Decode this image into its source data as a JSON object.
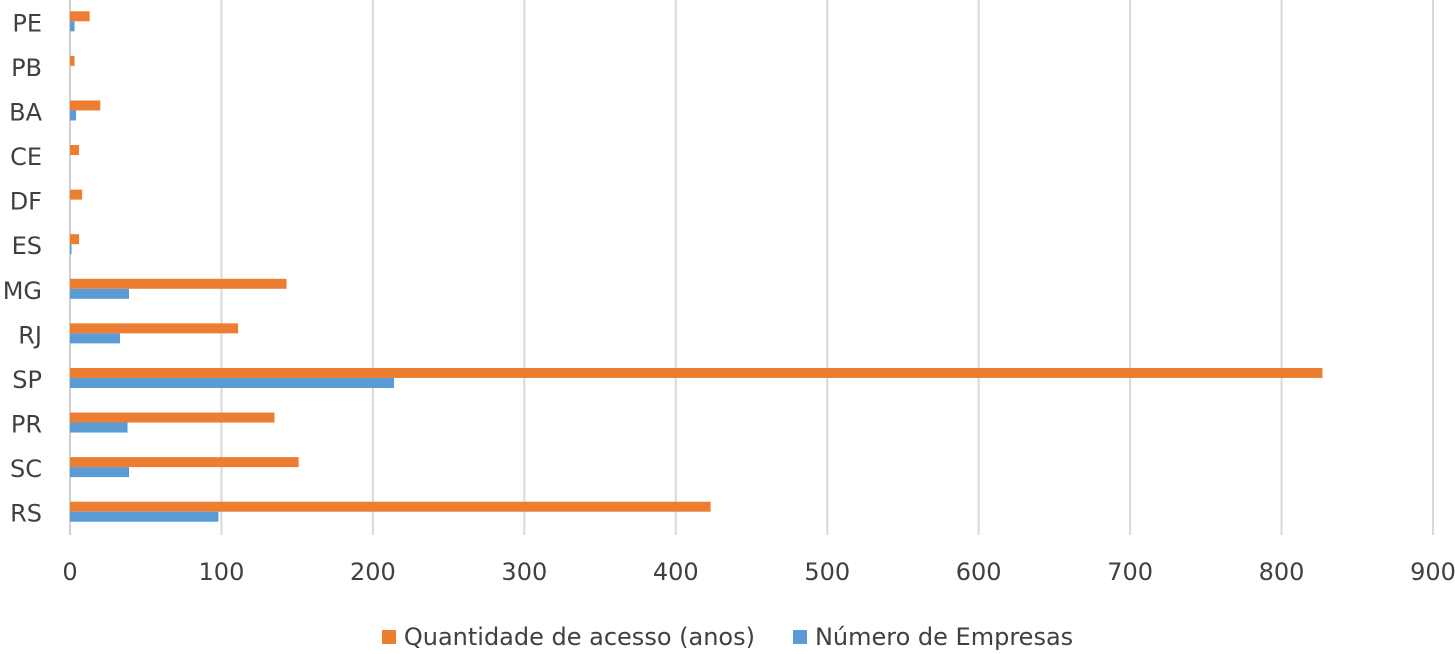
{
  "chart_data": {
    "type": "bar",
    "orientation": "horizontal",
    "categories": [
      "PE",
      "PB",
      "BA",
      "CE",
      "DF",
      "ES",
      "MG",
      "RJ",
      "SP",
      "PR",
      "SC",
      "RS"
    ],
    "series": [
      {
        "name": "Quantidade de acesso (anos)",
        "color": "#ED7D31",
        "values": [
          13,
          3,
          20,
          6,
          8,
          6,
          143,
          111,
          827,
          135,
          151,
          423
        ]
      },
      {
        "name": "Número de Empresas",
        "color": "#5B9BD5",
        "values": [
          3,
          0,
          4,
          0,
          0,
          1,
          39,
          33,
          214,
          38,
          39,
          98
        ]
      }
    ],
    "xlim": [
      0,
      900
    ],
    "xticks": [
      "0",
      "100",
      "200",
      "300",
      "400",
      "500",
      "600",
      "700",
      "800",
      "900"
    ],
    "grid": true,
    "legend_position": "bottom",
    "legend_order": [
      0,
      1
    ],
    "title": "",
    "xlabel": "",
    "ylabel": ""
  }
}
